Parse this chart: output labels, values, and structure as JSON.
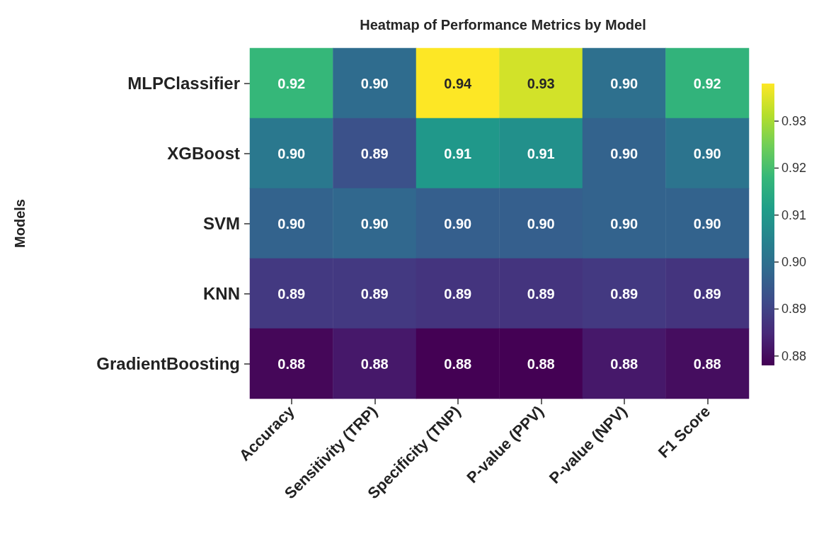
{
  "chart_data": {
    "type": "heatmap",
    "title": "Heatmap of Performance Metrics by Model",
    "ylabel": "Models",
    "categories": [
      "Accuracy",
      "Sensitivity (TRP)",
      "Specificity (TNP)",
      "P-value (PPV)",
      "P-value (NPV)",
      "F1 Score"
    ],
    "y_categories": [
      "MLPClassifier",
      "XGBoost",
      "SVM",
      "KNN",
      "GradientBoosting"
    ],
    "cells": [
      [
        0.918,
        0.899,
        0.938,
        0.934,
        0.9,
        0.917
      ],
      [
        0.902,
        0.893,
        0.91,
        0.908,
        0.897,
        0.901
      ],
      [
        0.897,
        0.898,
        0.896,
        0.896,
        0.897,
        0.897
      ],
      [
        0.888,
        0.888,
        0.887,
        0.887,
        0.888,
        0.887
      ],
      [
        0.879,
        0.882,
        0.878,
        0.878,
        0.882,
        0.88
      ]
    ],
    "cell_labels": [
      [
        "0.92",
        "0.90",
        "0.94",
        "0.93",
        "0.90",
        "0.92"
      ],
      [
        "0.90",
        "0.89",
        "0.91",
        "0.91",
        "0.90",
        "0.90"
      ],
      [
        "0.90",
        "0.90",
        "0.90",
        "0.90",
        "0.90",
        "0.90"
      ],
      [
        "0.89",
        "0.89",
        "0.89",
        "0.89",
        "0.89",
        "0.89"
      ],
      [
        "0.88",
        "0.88",
        "0.88",
        "0.88",
        "0.88",
        "0.88"
      ]
    ],
    "clim": [
      0.878,
      0.938
    ],
    "cticks": [
      0.88,
      0.89,
      {
        "value": 0.9,
        "label": "0.90"
      },
      0.91,
      0.92,
      0.93
    ]
  }
}
